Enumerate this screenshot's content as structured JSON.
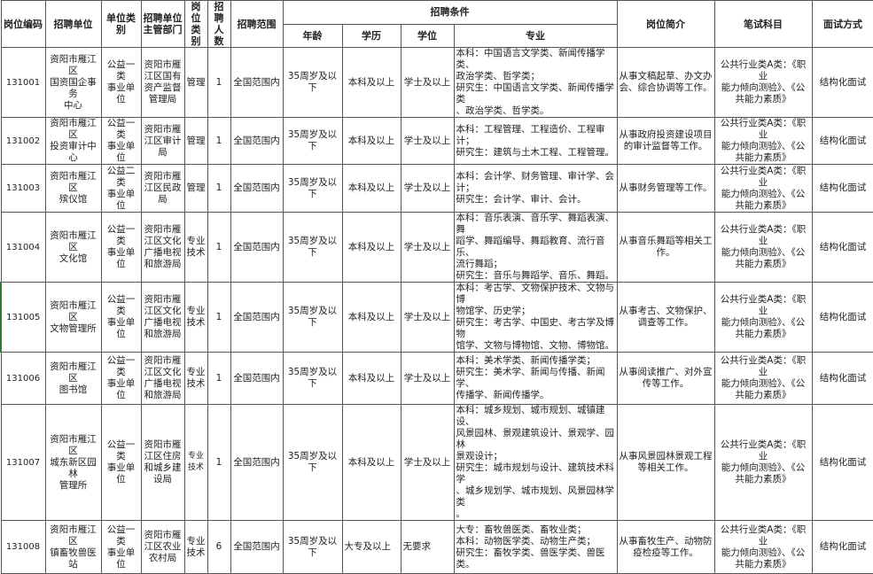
{
  "header": {
    "code": "岗位编码",
    "unit": "招聘单位",
    "unit_type": "单位类别",
    "dept": "招聘单位\n主管部门",
    "post_type": "岗位\n类别",
    "count": "招聘\n人数",
    "scope": "招聘范围",
    "conditions": "招聘条件",
    "age": "年龄",
    "education": "学历",
    "degree": "学位",
    "major": "专业",
    "intro": "岗位简介",
    "exam": "笔试科目",
    "interview": "面试方式"
  },
  "rows": [
    {
      "code": "131001",
      "unit": "资阳市雁江区\n国资国企事务\n中心",
      "unit_type": "公益一类\n事业单位",
      "dept": "资阳市雁\n江区国有\n资产监督\n管理局",
      "post_type": "管理",
      "count": "1",
      "scope": "全国范围内",
      "age": "35周岁及以下",
      "education": "本科及以上",
      "degree": "学士及以上",
      "major": "本科：中国语言文学类、新闻传播学类、\n政治学类、哲学类；\n研究生：中国语言文学类、新闻传播学类\n、政治学类、哲学类。",
      "intro": "从事文稿起草、办文办\n会、综合协调等工作。",
      "exam": "公共行业类A类：《职业\n能力倾向测验》、《公\n共能力素质》",
      "interview": "结构化面试"
    },
    {
      "code": "131002",
      "unit": "资阳市雁江区\n投资审计中心",
      "unit_type": "公益一类\n事业单位",
      "dept": "资阳市雁\n江区审计\n局",
      "post_type": "管理",
      "count": "1",
      "scope": "全国范围内",
      "age": "35周岁及以下",
      "education": "本科及以上",
      "degree": "学士及以上",
      "major": "本科：工程管理、工程造价、工程审计；\n研究生：建筑与土木工程、工程管理。",
      "intro": "从事政府投资建设项目\n的审计监督等工作。",
      "exam": "公共行业类A类：《职业\n能力倾向测验》、《公\n共能力素质》",
      "interview": "结构化面试"
    },
    {
      "code": "131003",
      "unit": "资阳市雁江区\n殡仪馆",
      "unit_type": "公益二类\n事业单位",
      "dept": "资阳市雁\n江区民政\n局",
      "post_type": "管理",
      "count": "1",
      "scope": "全国范围内",
      "age": "35周岁及以下",
      "education": "本科及以上",
      "degree": "学士及以上",
      "major": "本科：会计学、财务管理、审计学、会\n计；\n研究生：会计学、审计、会计。",
      "intro": "从事财务管理等工作。",
      "exam": "公共行业类A类：《职业\n能力倾向测验》、《公\n共能力素质》",
      "interview": "结构化面试"
    },
    {
      "code": "131004",
      "unit": "资阳市雁江区\n文化馆",
      "unit_type": "公益一类\n事业单位",
      "dept": "资阳市雁\n江区文化\n广播电视\n和旅游局",
      "post_type": "专业\n技术",
      "count": "1",
      "scope": "全国范围内",
      "age": "35周岁及以下",
      "education": "本科及以上",
      "degree": "学士及以上",
      "major": "本科：音乐表演、音乐学、舞蹈表演、舞\n蹈学、舞蹈编导、舞蹈教育、流行音乐、\n流行舞蹈；\n研究生：音乐与舞蹈学、音乐、舞蹈。",
      "intro": "从事音乐舞蹈等相关工\n作。",
      "exam": "公共行业类A类：《职业\n能力倾向测验》、《公\n共能力素质》",
      "interview": "结构化面试"
    },
    {
      "code": "131005",
      "unit": "资阳市雁江区\n文物管理所",
      "unit_type": "公益一类\n事业单位",
      "dept": "资阳市雁\n江区文化\n广播电视\n和旅游局",
      "post_type": "专业\n技术",
      "count": "1",
      "scope": "全国范围内",
      "age": "35周岁及以下",
      "education": "本科及以上",
      "degree": "学士及以上",
      "major": "本科：考古学、文物保护技术、文物与博\n物馆学、历史学；\n研究生：考古学、中国史、考古学及博物\n馆学、文物与博物馆、文物、博物馆。",
      "intro": "从事考古、文物保护、\n调查等工作。",
      "exam": "公共行业类A类：《职业\n能力倾向测验》、《公\n共能力素质》",
      "interview": "结构化面试"
    },
    {
      "code": "131006",
      "unit": "资阳市雁江区\n图书馆",
      "unit_type": "公益一类\n事业单位",
      "dept": "资阳市雁\n江区文化\n广播电视\n和旅游局",
      "post_type": "专业\n技术",
      "count": "1",
      "scope": "全国范围内",
      "age": "35周岁及以下",
      "education": "本科及以上",
      "degree": "学士及以上",
      "major": "本科：美术学类、新闻传播学类；\n研究生：美术学、新闻与传播、新闻学、\n传播学、新闻传播学。",
      "intro": "从事阅读推广、对外宣\n传等工作。",
      "exam": "公共行业类A类：《职业\n能力倾向测验》、《公\n共能力素质》",
      "interview": "结构化面试"
    },
    {
      "code": "131007",
      "unit": "资阳市雁江区\n城东新区园林\n管理所",
      "unit_type": "公益一类\n事业单位",
      "dept": "资阳市雁\n江区住房\n和城乡建\n设局",
      "post_type": "专业\n技术",
      "count": "1",
      "scope": "全国范围内",
      "age": "35周岁及以下",
      "education": "本科及以上",
      "degree": "学士及以上",
      "major": "本科：城乡规划、城市规划、城镇建设、\n风景园林、景观建筑设计、景观学、园林\n景观设计；\n研究生：城市规划与设计、建筑技术科学\n、城乡规划学、城市规划、风景园林学类\n。",
      "intro": "从事风景园林景观工程\n等相关工作。",
      "exam": "公共行业类A类：《职业\n能力倾向测验》、《公\n共能力素质》",
      "interview": "结构化面试"
    },
    {
      "code": "131008",
      "unit": "资阳市雁江区\n镇畜牧兽医站",
      "unit_type": "公益一类\n事业单位",
      "dept": "资阳市雁\n江区农业\n农村局",
      "post_type": "专业\n技术",
      "count": "6",
      "scope": "全国范围内",
      "age": "35周岁及以下",
      "education": "大专及以上",
      "degree": "无要求",
      "major": "大专：畜牧兽医类、畜牧业类；\n本科：动物医学类、动物生产类；\n研究生：畜牧学类、兽医学类、兽医类。",
      "intro": "从事畜牧生产、动物防\n疫检疫等工作。",
      "exam": "公共行业类A类：《职业\n能力倾向测验》、《公\n共能力素质》",
      "interview": "结构化面试"
    }
  ]
}
